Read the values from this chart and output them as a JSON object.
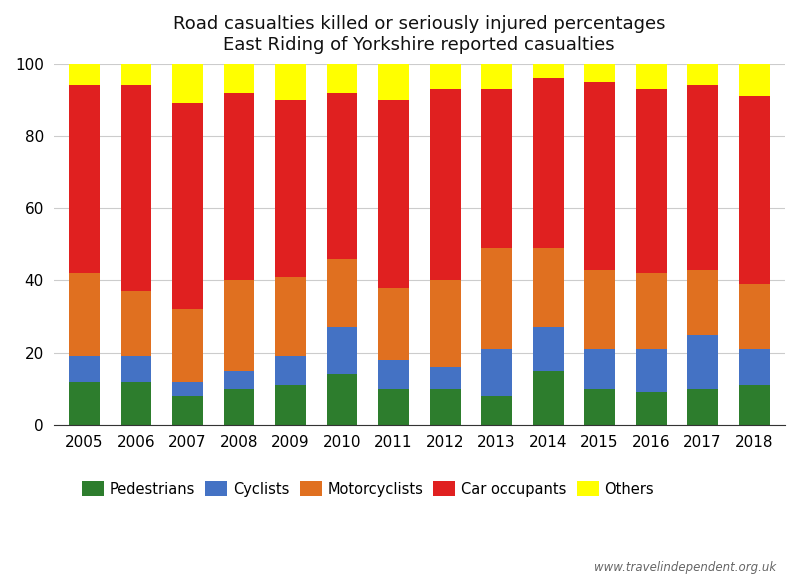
{
  "years": [
    2005,
    2006,
    2007,
    2008,
    2009,
    2010,
    2011,
    2012,
    2013,
    2014,
    2015,
    2016,
    2017,
    2018
  ],
  "pedestrians": [
    12,
    12,
    8,
    10,
    11,
    14,
    10,
    10,
    8,
    15,
    10,
    9,
    10,
    11
  ],
  "cyclists": [
    7,
    7,
    4,
    5,
    8,
    13,
    8,
    6,
    13,
    12,
    11,
    12,
    15,
    10
  ],
  "motorcyclists": [
    23,
    18,
    20,
    25,
    22,
    19,
    20,
    24,
    28,
    22,
    22,
    21,
    18,
    18
  ],
  "car_occupants": [
    52,
    57,
    57,
    52,
    49,
    46,
    52,
    53,
    44,
    47,
    52,
    51,
    51,
    52
  ],
  "others": [
    6,
    6,
    11,
    8,
    10,
    8,
    10,
    7,
    7,
    4,
    5,
    7,
    6,
    9
  ],
  "colors": {
    "pedestrians": "#2d7d2d",
    "cyclists": "#4472c4",
    "motorcyclists": "#e07020",
    "car_occupants": "#e02020",
    "others": "#ffff00"
  },
  "title_line1": "Road casualties killed or seriously injured percentages",
  "title_line2": "East Riding of Yorkshire reported casualties",
  "ylim": [
    0,
    100
  ],
  "watermark": "www.travelindependent.org.uk",
  "bg_color": "#ffffff"
}
